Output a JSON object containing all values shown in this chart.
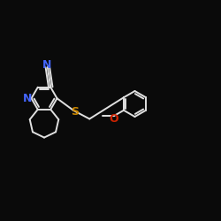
{
  "bg_color": "#0a0a0a",
  "bond_color": "#e0e0e0",
  "N_color": "#4466ff",
  "S_color": "#cc8800",
  "O_color": "#cc2200",
  "lw": 1.4,
  "figsize": [
    2.5,
    2.5
  ],
  "dpi": 100,
  "xlim": [
    -0.5,
    9.5
  ],
  "ylim": [
    -2.5,
    5.0
  ]
}
